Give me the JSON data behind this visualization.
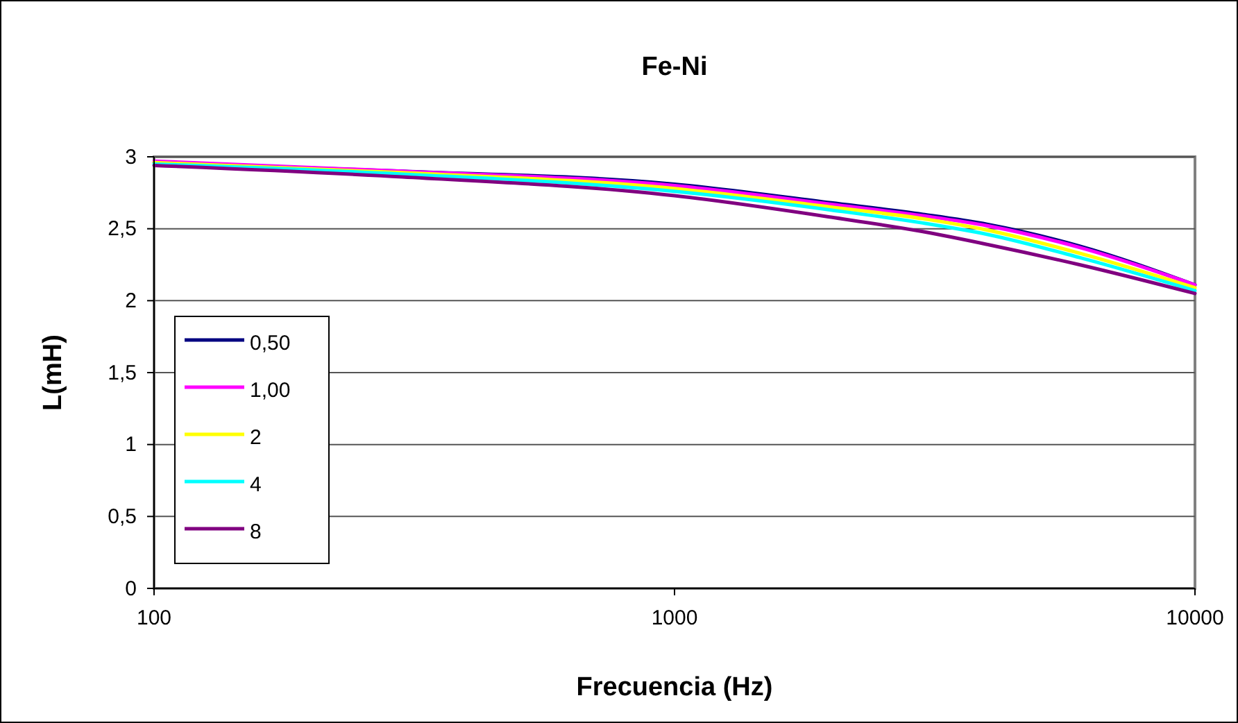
{
  "chart_data": {
    "type": "line",
    "title": "Fe-Ni",
    "xlabel": "Frecuencia (Hz)",
    "ylabel": "L(mH)",
    "log": "x",
    "x": [
      100,
      300,
      1000,
      2000,
      3000,
      4000,
      6000,
      10000
    ],
    "xlim": [
      100,
      10000
    ],
    "xticks": [
      100,
      1000,
      10000
    ],
    "ylim": [
      0,
      3
    ],
    "yticks": [
      0,
      {
        "value": 0.5,
        "label": "0,5"
      },
      1,
      {
        "value": 1.5,
        "label": "1,5"
      },
      2,
      {
        "value": 2.5,
        "label": "2,5"
      },
      3
    ],
    "grid": "y",
    "legend": "left",
    "marker": "none",
    "line_style": "solid",
    "series": [
      {
        "name": "0,50",
        "color": "#000080",
        "values": [
          2.96,
          2.9,
          2.81,
          2.68,
          2.6,
          2.53,
          2.38,
          2.11
        ]
      },
      {
        "name": "1,00",
        "color": "#ff00ff",
        "values": [
          2.97,
          2.9,
          2.8,
          2.67,
          2.59,
          2.52,
          2.37,
          2.11
        ]
      },
      {
        "name": "2",
        "color": "#ffff00",
        "values": [
          2.96,
          2.89,
          2.78,
          2.65,
          2.57,
          2.49,
          2.33,
          2.09
        ]
      },
      {
        "name": "4",
        "color": "#00ffff",
        "values": [
          2.95,
          2.88,
          2.76,
          2.63,
          2.54,
          2.46,
          2.3,
          2.07
        ]
      },
      {
        "name": "8",
        "color": "#800080",
        "values": [
          2.94,
          2.86,
          2.73,
          2.58,
          2.48,
          2.39,
          2.25,
          2.05
        ]
      }
    ]
  }
}
